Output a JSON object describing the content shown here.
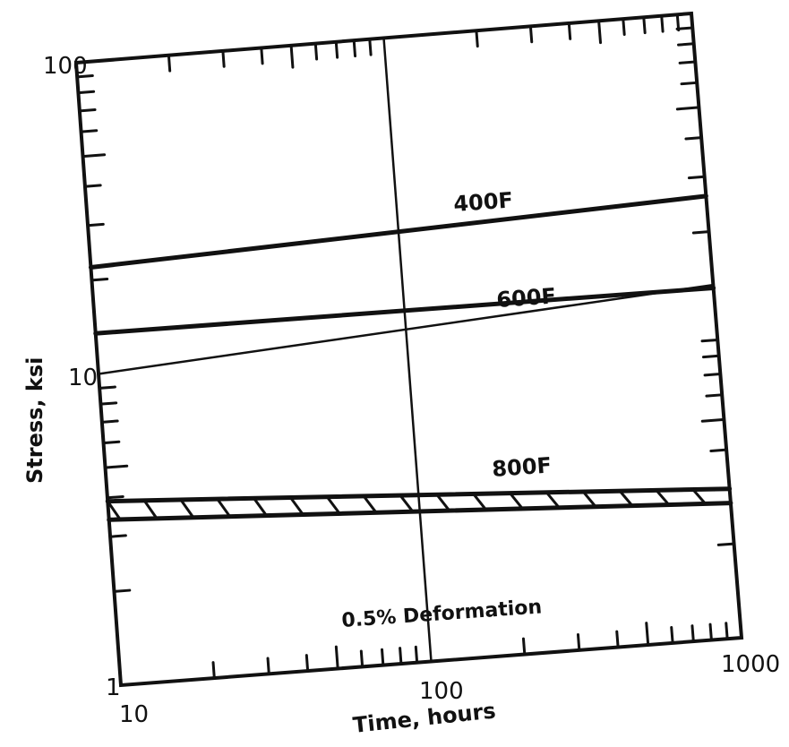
{
  "chart_data": {
    "type": "line",
    "xlabel": "Time, hours",
    "ylabel": "Stress, ksi",
    "x_scale": "log",
    "y_scale": "log",
    "xlim": [
      10,
      1000
    ],
    "ylim": [
      1,
      100
    ],
    "x_tick_labels": [
      "10",
      "100",
      "1000"
    ],
    "y_tick_labels": [
      "1",
      "10",
      "100"
    ],
    "grid": "single vertical and horizontal lines at decade marks",
    "series": [
      {
        "name": "400F",
        "x": [
          10,
          1000
        ],
        "y": [
          22,
          26
        ]
      },
      {
        "name": "600F",
        "x": [
          10,
          1000
        ],
        "y": [
          13.5,
          13.2
        ]
      },
      {
        "name": "",
        "x": [
          10,
          1000
        ],
        "y": [
          10,
          13.5
        ]
      },
      {
        "name": "",
        "x": [
          10,
          1000
        ],
        "y": [
          3.9,
          3.0
        ]
      },
      {
        "name": "",
        "x": [
          10,
          1000
        ],
        "y": [
          3.4,
          2.7
        ]
      }
    ],
    "region_labels": [
      "400F",
      "600F",
      "800F"
    ],
    "annotation": "0.5% Deformation",
    "color": "#111111"
  }
}
